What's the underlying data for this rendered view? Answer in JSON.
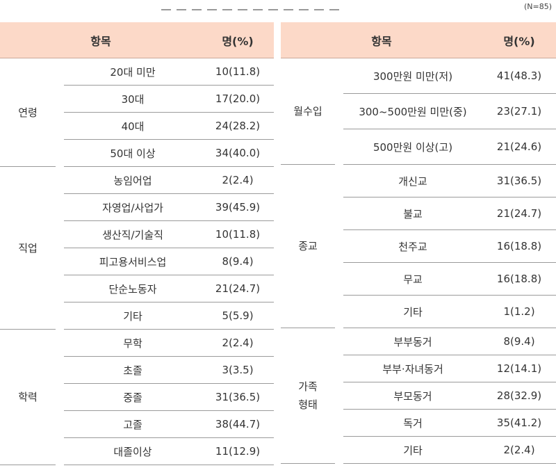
{
  "note": "(N=85)",
  "headers": {
    "item": "항목",
    "count": "명(%)"
  },
  "left_groups": [
    {
      "category": "연령",
      "rows": [
        {
          "label": "20대 미만",
          "value": "10(11.8)"
        },
        {
          "label": "30대",
          "value": "17(20.0)"
        },
        {
          "label": "40대",
          "value": "24(28.2)"
        },
        {
          "label": "50대 이상",
          "value": "34(40.0)"
        }
      ]
    },
    {
      "category": "직업",
      "rows": [
        {
          "label": "농임어업",
          "value": "2(2.4)"
        },
        {
          "label": "자영업/사업가",
          "value": "39(45.9)"
        },
        {
          "label": "생산직/기술직",
          "value": "10(11.8)"
        },
        {
          "label": "피고용서비스업",
          "value": "8(9.4)"
        },
        {
          "label": "단순노동자",
          "value": "21(24.7)"
        },
        {
          "label": "기타",
          "value": "5(5.9)"
        }
      ]
    },
    {
      "category": "학력",
      "rows": [
        {
          "label": "무학",
          "value": "2(2.4)"
        },
        {
          "label": "초졸",
          "value": "3(3.5)"
        },
        {
          "label": "중졸",
          "value": "31(36.5)"
        },
        {
          "label": "고졸",
          "value": "38(44.7)"
        },
        {
          "label": "대졸이상",
          "value": "11(12.9)"
        }
      ]
    }
  ],
  "right_groups": [
    {
      "category": "월수입",
      "rows": [
        {
          "label": "300만원 미만(저)",
          "value": "41(48.3)"
        },
        {
          "label": "300~500만원 미만(중)",
          "value": "23(27.1)"
        },
        {
          "label": "500만원 이상(고)",
          "value": "21(24.6)"
        }
      ]
    },
    {
      "category": "종교",
      "rows": [
        {
          "label": "개신교",
          "value": "31(36.5)"
        },
        {
          "label": "불교",
          "value": "21(24.7)"
        },
        {
          "label": "천주교",
          "value": "16(18.8)"
        },
        {
          "label": "무교",
          "value": "16(18.8)"
        },
        {
          "label": "기타",
          "value": "1(1.2)"
        }
      ]
    },
    {
      "category_lines": [
        "가족",
        "형태"
      ],
      "rows": [
        {
          "label": "부부동거",
          "value": "8(9.4)"
        },
        {
          "label": "부부·자녀동거",
          "value": "12(14.1)"
        },
        {
          "label": "부모동거",
          "value": "28(32.9)"
        },
        {
          "label": "독거",
          "value": "35(41.2)"
        },
        {
          "label": "기타",
          "value": "2(2.4)"
        }
      ]
    }
  ]
}
